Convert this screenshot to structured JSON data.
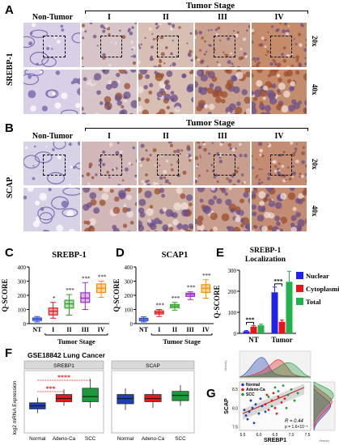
{
  "panels": {
    "A": {
      "letter": "A",
      "marker": "SREBP-1",
      "mags": [
        "20x",
        "40x"
      ]
    },
    "B": {
      "letter": "B",
      "marker": "SCAP",
      "mags": [
        "20x",
        "40x"
      ]
    }
  },
  "micrograph_headers": {
    "tumor_stage": "Tumor Stage",
    "columns": [
      "Non-Tumor",
      "I",
      "II",
      "III",
      "IV"
    ]
  },
  "tissue_colors": {
    "nontumor": "#d9cfe6",
    "stage1": "#d6c4c8",
    "stage2": "#d8bfb4",
    "stage3": "#c9a18e",
    "stage4": "#c58c6c",
    "b_nontumor": "#d8d2e6",
    "b_stage1": "#d1b7b8",
    "b_stage2": "#cfb0a4",
    "b_stage3": "#c89f8f",
    "b_stage4": "#c48d73"
  },
  "chart_data": [
    {
      "panel": "C",
      "type": "box",
      "title": "SREBP-1",
      "ylabel": "Q-SCORE",
      "xlabel": "Tumor Stage",
      "categories": [
        "NT",
        "I",
        "II",
        "III",
        "IV"
      ],
      "ylim": [
        0,
        400
      ],
      "yticks": [
        0,
        100,
        200,
        300,
        400
      ],
      "boxes": [
        {
          "min": 12,
          "q1": 22,
          "median": 32,
          "q3": 40,
          "max": 50,
          "color": "#3355d6"
        },
        {
          "min": 38,
          "q1": 62,
          "median": 88,
          "q3": 110,
          "max": 150,
          "color": "#e31a1c"
        },
        {
          "min": 60,
          "q1": 110,
          "median": 140,
          "q3": 165,
          "max": 205,
          "color": "#33a02c"
        },
        {
          "min": 100,
          "q1": 150,
          "median": 180,
          "q3": 218,
          "max": 290,
          "color": "#9b30c8"
        },
        {
          "min": 185,
          "q1": 220,
          "median": 250,
          "q3": 280,
          "max": 300,
          "color": "#ff8c00"
        }
      ],
      "annotations": [
        "*",
        "***",
        "***",
        "***"
      ]
    },
    {
      "panel": "D",
      "type": "box",
      "title": "SCAP1",
      "ylabel": "Q-SCORE",
      "xlabel": "Tumor Stage",
      "categories": [
        "NT",
        "I",
        "II",
        "III",
        "IV"
      ],
      "ylim": [
        0,
        400
      ],
      "yticks": [
        0,
        100,
        200,
        300,
        400
      ],
      "boxes": [
        {
          "min": 12,
          "q1": 20,
          "median": 30,
          "q3": 38,
          "max": 48,
          "color": "#3355d6"
        },
        {
          "min": 50,
          "q1": 68,
          "median": 78,
          "q3": 90,
          "max": 100,
          "color": "#e31a1c"
        },
        {
          "min": 95,
          "q1": 112,
          "median": 124,
          "q3": 135,
          "max": 150,
          "color": "#33a02c"
        },
        {
          "min": 170,
          "q1": 192,
          "median": 205,
          "q3": 215,
          "max": 225,
          "color": "#9b30c8"
        },
        {
          "min": 180,
          "q1": 220,
          "median": 250,
          "q3": 275,
          "max": 310,
          "color": "#ff8c00"
        }
      ],
      "annotations": [
        "***",
        "***",
        "***",
        "***"
      ]
    },
    {
      "panel": "E",
      "type": "bar",
      "title": "SREBP-1",
      "subtitle": "Localization",
      "ylabel": "Q-SCORE",
      "categories": [
        "NT",
        "Tumor"
      ],
      "ylim": [
        0,
        300
      ],
      "yticks": [
        0,
        100,
        200,
        300
      ],
      "series": [
        {
          "name": "Nuclear",
          "values": [
            10,
            195
          ],
          "errors": [
            3,
            25
          ],
          "color": "#1e22ee"
        },
        {
          "name": "Cytoplasmic",
          "values": [
            32,
            55
          ],
          "errors": [
            5,
            8
          ],
          "color": "#e8141c"
        },
        {
          "name": "Total",
          "values": [
            38,
            245
          ],
          "errors": [
            6,
            50
          ],
          "color": "#22b14c"
        }
      ],
      "annotations": [
        "***",
        "***"
      ],
      "legend": "top-right"
    },
    {
      "panel": "F",
      "type": "box",
      "title": "GSE18842 Lung Cancer",
      "facets": [
        "SREBP1",
        "SCAP"
      ],
      "ylabel": "log2 mRNA Expression",
      "categories": [
        "Normal",
        "Adeno-Ca",
        "SCC"
      ],
      "ylim": [
        5,
        11
      ],
      "yticks": [],
      "groups": [
        {
          "facet": "SREBP1",
          "boxes": [
            {
              "min": 6.9,
              "q1": 7.3,
              "median": 7.6,
              "q3": 7.9,
              "max": 8.4,
              "color": "#1f3fb4"
            },
            {
              "min": 7.6,
              "q1": 8.0,
              "median": 8.3,
              "q3": 8.7,
              "max": 9.2,
              "color": "#e3191c"
            },
            {
              "min": 7.4,
              "q1": 8.0,
              "median": 8.5,
              "q3": 9.3,
              "max": 10.2,
              "color": "#1e9a3c"
            }
          ]
        },
        {
          "facet": "SCAP",
          "boxes": [
            {
              "min": 7.2,
              "q1": 7.8,
              "median": 8.3,
              "q3": 8.7,
              "max": 9.3,
              "color": "#1f3fb4"
            },
            {
              "min": 7.4,
              "q1": 8.0,
              "median": 8.3,
              "q3": 8.7,
              "max": 9.2,
              "color": "#e3191c"
            },
            {
              "min": 7.6,
              "q1": 8.1,
              "median": 8.6,
              "q3": 9.0,
              "max": 9.6,
              "color": "#1e9a3c"
            }
          ]
        }
      ],
      "annotations": [
        "****",
        "***"
      ]
    },
    {
      "panel": "G",
      "type": "scatter",
      "xlabel": "SREBP1",
      "ylabel": "SCAP",
      "xticks": [
        "5.5",
        "6.0",
        "6.5",
        "7.0",
        "7.5"
      ],
      "yticks": [
        "7.5",
        "8.0",
        "8.5"
      ],
      "xlim": [
        5.4,
        7.6
      ],
      "ylim": [
        7.4,
        8.7
      ],
      "legend": [
        "Normal",
        "Adeno-Ca",
        "SCC"
      ],
      "legend_colors": [
        "#1f3fb4",
        "#e3191c",
        "#1e9a3c"
      ],
      "stats": {
        "r": "R = 0.44",
        "p": "p = 1.6×10⁻⁵"
      },
      "margin_x_label": "density",
      "margin_y_label": "density",
      "points": [
        {
          "g": 0,
          "x": 5.6,
          "y": 7.8
        },
        {
          "g": 0,
          "x": 5.7,
          "y": 7.9
        },
        {
          "g": 0,
          "x": 5.8,
          "y": 8.0
        },
        {
          "g": 0,
          "x": 5.65,
          "y": 7.7
        },
        {
          "g": 0,
          "x": 5.9,
          "y": 8.1
        },
        {
          "g": 0,
          "x": 6.0,
          "y": 7.85
        },
        {
          "g": 0,
          "x": 5.55,
          "y": 7.95
        },
        {
          "g": 0,
          "x": 6.1,
          "y": 8.05
        },
        {
          "g": 0,
          "x": 5.75,
          "y": 8.2
        },
        {
          "g": 0,
          "x": 6.2,
          "y": 7.9
        },
        {
          "g": 0,
          "x": 5.85,
          "y": 7.6
        },
        {
          "g": 0,
          "x": 6.05,
          "y": 8.25
        },
        {
          "g": 1,
          "x": 6.2,
          "y": 8.1
        },
        {
          "g": 1,
          "x": 6.4,
          "y": 8.2
        },
        {
          "g": 1,
          "x": 6.5,
          "y": 8.0
        },
        {
          "g": 1,
          "x": 6.6,
          "y": 8.3
        },
        {
          "g": 1,
          "x": 6.3,
          "y": 7.95
        },
        {
          "g": 1,
          "x": 6.7,
          "y": 8.15
        },
        {
          "g": 1,
          "x": 6.45,
          "y": 8.4
        },
        {
          "g": 1,
          "x": 6.8,
          "y": 8.25
        },
        {
          "g": 1,
          "x": 6.25,
          "y": 8.35
        },
        {
          "g": 1,
          "x": 6.55,
          "y": 7.85
        },
        {
          "g": 2,
          "x": 6.3,
          "y": 8.3
        },
        {
          "g": 2,
          "x": 6.6,
          "y": 8.45
        },
        {
          "g": 2,
          "x": 6.9,
          "y": 8.35
        },
        {
          "g": 2,
          "x": 7.0,
          "y": 8.5
        },
        {
          "g": 2,
          "x": 6.5,
          "y": 8.55
        },
        {
          "g": 2,
          "x": 7.2,
          "y": 8.4
        },
        {
          "g": 2,
          "x": 6.75,
          "y": 8.6
        },
        {
          "g": 2,
          "x": 7.1,
          "y": 8.2
        },
        {
          "g": 2,
          "x": 6.4,
          "y": 8.05
        },
        {
          "g": 2,
          "x": 6.85,
          "y": 8.0
        }
      ]
    }
  ]
}
